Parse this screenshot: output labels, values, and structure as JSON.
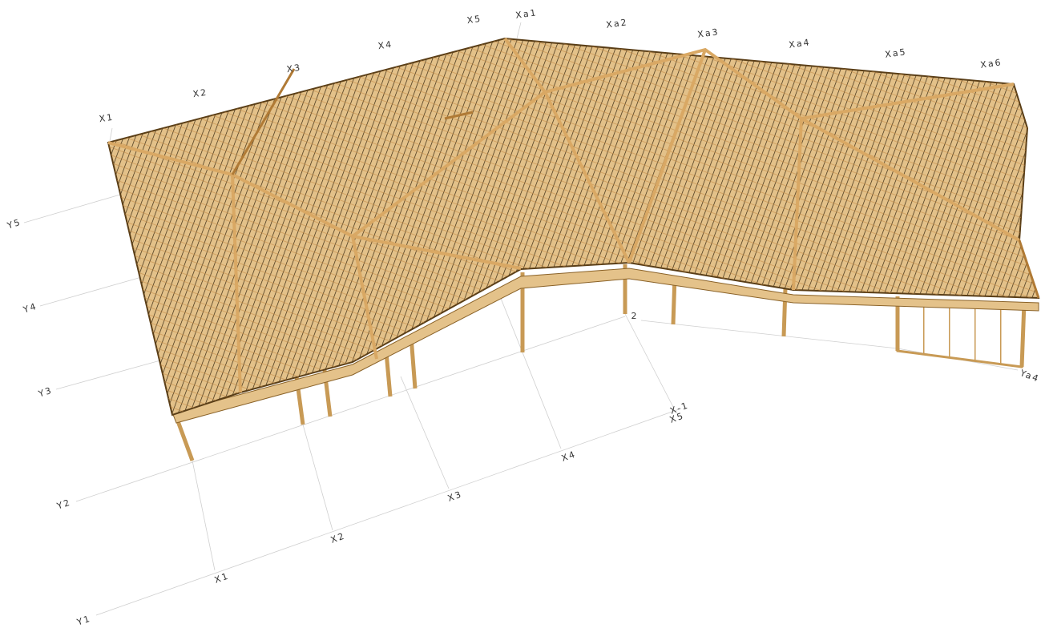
{
  "top_labels": [
    "X1",
    "X2",
    "X3",
    "X4",
    "X5",
    "Xa1",
    "Xa2",
    "Xa3",
    "Xa4",
    "Xa5",
    "Xa6"
  ],
  "left_labels": [
    "Y5",
    "Y4",
    "Y3",
    "Y2",
    "Y1"
  ],
  "bottom_labels": [
    "X1",
    "X2",
    "X3",
    "X4",
    "X5",
    "X-1"
  ],
  "right_labels": [
    "Ya4"
  ],
  "other_labels": [
    "2"
  ]
}
